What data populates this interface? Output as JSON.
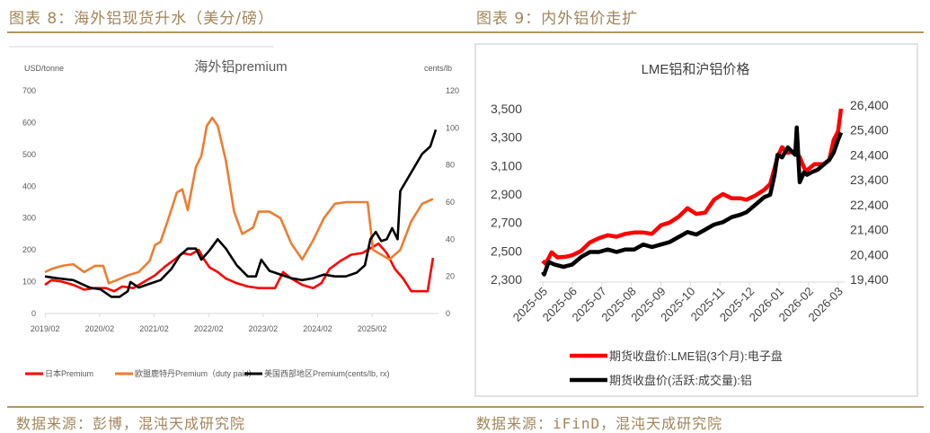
{
  "figures": {
    "left_title": "图表 8：海外铝现货升水（美分/磅）",
    "right_title": "图表 9：内外铝价走扩",
    "left_source": "数据来源：彭博，混沌天成研究院",
    "right_source": "数据来源：iFinD，混沌天成研究院"
  },
  "colors": {
    "accent": "#b3975f",
    "red": "#ff0000",
    "orange": "#ed7d31",
    "black": "#000000",
    "title_text": "#a3845a"
  },
  "chart_data": [
    {
      "type": "line",
      "title": "海外铝premium",
      "ylabel_left": "USD/tonne",
      "ylabel_right": "cents/lb",
      "ylim_left": [
        0,
        700
      ],
      "ylim_right": [
        0,
        120
      ],
      "yticks_left": [
        "0",
        "100",
        "200",
        "300",
        "400",
        "500",
        "600",
        "700"
      ],
      "yticks_right": [
        "0",
        "20",
        "40",
        "60",
        "80",
        "100",
        "120"
      ],
      "xticks": [
        "2019/02",
        "2020/02",
        "2021/02",
        "2022/02",
        "2023/02",
        "2024/02",
        "2025/02"
      ],
      "x_range": [
        2019.08,
        2026.3
      ],
      "grid": false,
      "legend_position": "bottom",
      "series": [
        {
          "name": "日本Premium",
          "color": "#ff0000",
          "axis": "left",
          "x": [
            2019.08,
            2019.2,
            2019.4,
            2019.6,
            2019.8,
            2020.0,
            2020.2,
            2020.35,
            2020.5,
            2020.7,
            2020.9,
            2021.1,
            2021.3,
            2021.5,
            2021.6,
            2021.75,
            2021.9,
            2022.0,
            2022.1,
            2022.25,
            2022.4,
            2022.6,
            2022.8,
            2023.0,
            2023.1,
            2023.3,
            2023.45,
            2023.6,
            2023.8,
            2024.0,
            2024.15,
            2024.3,
            2024.5,
            2024.7,
            2024.9,
            2025.05,
            2025.2,
            2025.35,
            2025.5,
            2025.65,
            2025.8,
            2025.95,
            2026.1,
            2026.2
          ],
          "values": [
            90,
            105,
            100,
            90,
            75,
            80,
            80,
            70,
            85,
            80,
            100,
            120,
            150,
            175,
            190,
            185,
            200,
            170,
            145,
            130,
            110,
            95,
            85,
            80,
            80,
            80,
            130,
            110,
            90,
            80,
            95,
            140,
            165,
            185,
            190,
            205,
            220,
            190,
            140,
            110,
            70,
            70,
            70,
            175
          ]
        },
        {
          "name": "欧盟鹿特丹Premium（duty paid）",
          "color": "#ed7d31",
          "axis": "left",
          "x": [
            2019.08,
            2019.2,
            2019.4,
            2019.6,
            2019.8,
            2020.0,
            2020.15,
            2020.25,
            2020.4,
            2020.6,
            2020.8,
            2021.0,
            2021.1,
            2021.2,
            2021.35,
            2021.5,
            2021.6,
            2021.7,
            2021.85,
            2021.95,
            2022.05,
            2022.15,
            2022.25,
            2022.4,
            2022.55,
            2022.7,
            2022.9,
            2023.0,
            2023.2,
            2023.4,
            2023.6,
            2023.8,
            2024.0,
            2024.2,
            2024.4,
            2024.6,
            2024.8,
            2025.0,
            2025.1,
            2025.2,
            2025.4,
            2025.6,
            2025.8,
            2026.0,
            2026.2
          ],
          "values": [
            130,
            140,
            150,
            155,
            130,
            150,
            150,
            95,
            105,
            120,
            130,
            165,
            215,
            225,
            300,
            380,
            390,
            325,
            460,
            495,
            590,
            615,
            590,
            480,
            320,
            250,
            270,
            320,
            320,
            300,
            220,
            170,
            230,
            300,
            345,
            350,
            350,
            350,
            200,
            190,
            170,
            200,
            290,
            345,
            360
          ]
        },
        {
          "name": "美国西部地区Premium(cents/lb, rx)",
          "color": "#000000",
          "axis": "right",
          "x": [
            2019.08,
            2019.3,
            2019.6,
            2019.9,
            2020.1,
            2020.3,
            2020.45,
            2020.6,
            2020.65,
            2020.8,
            2021.0,
            2021.2,
            2021.4,
            2021.55,
            2021.7,
            2021.85,
            2021.95,
            2022.1,
            2022.25,
            2022.4,
            2022.6,
            2022.8,
            2022.95,
            2023.05,
            2023.2,
            2023.4,
            2023.6,
            2023.8,
            2024.0,
            2024.2,
            2024.4,
            2024.6,
            2024.8,
            2024.95,
            2025.05,
            2025.15,
            2025.25,
            2025.35,
            2025.45,
            2025.55,
            2025.6,
            2025.8,
            2026.0,
            2026.15,
            2026.25
          ],
          "values": [
            20,
            19,
            18,
            14,
            13,
            9,
            9,
            12,
            17,
            14,
            16,
            18,
            24,
            31,
            35,
            35,
            29,
            34,
            40,
            35,
            26,
            20,
            20,
            29,
            23,
            21,
            19,
            18,
            19,
            21,
            20,
            20,
            22,
            26,
            40,
            44,
            39,
            40,
            46,
            40,
            66,
            76,
            86,
            90,
            99
          ]
        }
      ]
    },
    {
      "type": "line",
      "title": "LME铝和沪铝价格",
      "ylim_left": [
        2300,
        3500
      ],
      "ylim_right": [
        19400,
        26400
      ],
      "yticks_left": [
        "2,300",
        "2,500",
        "2,700",
        "2,900",
        "3,100",
        "3,300",
        "3,500"
      ],
      "yticks_right": [
        "19,400",
        "20,400",
        "21,400",
        "22,400",
        "23,400",
        "24,400",
        "25,400",
        "26,400"
      ],
      "xticks": [
        "2025-05",
        "2025-06",
        "2025-07",
        "2025-08",
        "2025-09",
        "2025-10",
        "2025-11",
        "2025-12",
        "2026-01",
        "2026-02",
        "2026-03"
      ],
      "x_range": [
        0,
        10.1
      ],
      "grid": false,
      "legend_position": "bottom",
      "series": [
        {
          "name": "期货收盘价:LME铝(3个月):电子盘",
          "color": "#ff0000",
          "axis": "left",
          "x": [
            0,
            0.1,
            0.3,
            0.5,
            0.8,
            1.0,
            1.3,
            1.6,
            1.9,
            2.2,
            2.5,
            2.8,
            3.1,
            3.4,
            3.7,
            4.0,
            4.3,
            4.6,
            4.9,
            5.2,
            5.5,
            5.8,
            6.1,
            6.4,
            6.7,
            6.9,
            7.2,
            7.5,
            7.7,
            7.85,
            7.95,
            8.1,
            8.3,
            8.5,
            8.7,
            8.9,
            9.2,
            9.5,
            9.7,
            9.85,
            10.0,
            10.1
          ],
          "values": [
            2430,
            2410,
            2490,
            2455,
            2460,
            2470,
            2500,
            2560,
            2590,
            2610,
            2600,
            2620,
            2630,
            2630,
            2620,
            2680,
            2700,
            2740,
            2800,
            2760,
            2770,
            2860,
            2900,
            2870,
            2870,
            2860,
            2890,
            2930,
            2970,
            3080,
            3160,
            3230,
            3190,
            3200,
            3160,
            3060,
            3110,
            3110,
            3140,
            3280,
            3340,
            3500
          ]
        },
        {
          "name": "期货收盘价(活跃:成交量):铝",
          "color": "#000000",
          "axis": "right",
          "x": [
            0,
            0.05,
            0.2,
            0.4,
            0.7,
            1.0,
            1.3,
            1.6,
            1.9,
            2.2,
            2.5,
            2.8,
            3.1,
            3.4,
            3.7,
            4.0,
            4.3,
            4.6,
            4.9,
            5.2,
            5.5,
            5.8,
            6.1,
            6.4,
            6.7,
            6.9,
            7.2,
            7.5,
            7.7,
            7.85,
            7.95,
            8.1,
            8.3,
            8.55,
            8.6,
            8.7,
            8.85,
            8.95,
            9.1,
            9.3,
            9.5,
            9.7,
            9.85,
            10.0,
            10.1
          ],
          "values": [
            19700,
            19600,
            20100,
            20000,
            19900,
            20000,
            20300,
            20500,
            20500,
            20600,
            20500,
            20600,
            20600,
            20800,
            20700,
            20800,
            20900,
            21100,
            21300,
            21200,
            21400,
            21600,
            21700,
            21900,
            22000,
            22100,
            22400,
            22700,
            22800,
            23600,
            24400,
            24300,
            24700,
            24400,
            25500,
            23300,
            23700,
            23600,
            23700,
            23800,
            24000,
            24200,
            24500,
            25000,
            25300
          ]
        }
      ]
    }
  ]
}
